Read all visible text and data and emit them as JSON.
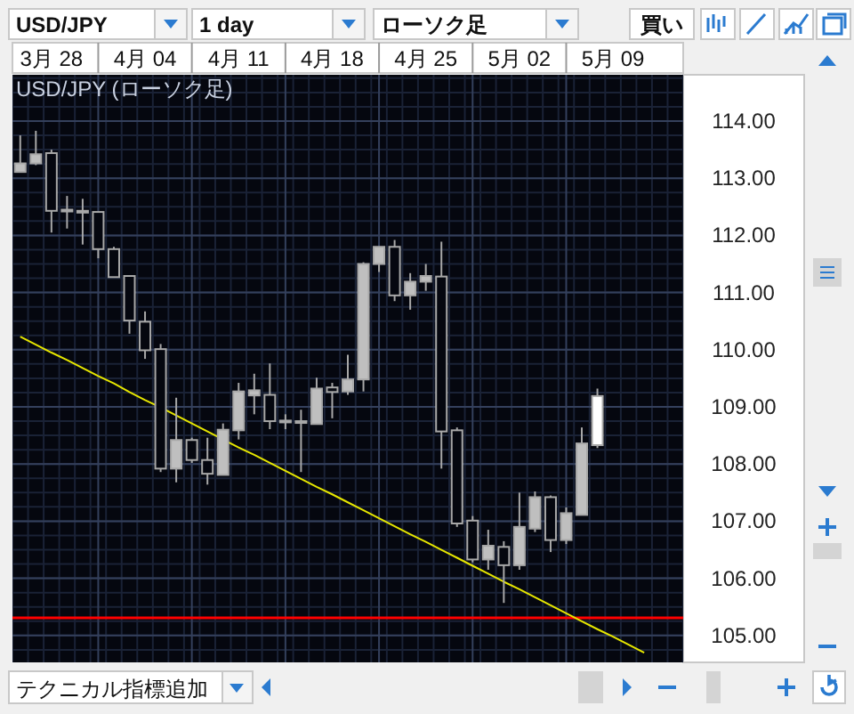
{
  "chart_data": {
    "type": "candlestick",
    "title": "USD/JPY (ローソク足)",
    "categories": [
      null,
      null,
      "3月 28",
      null,
      null,
      null,
      null,
      null,
      "4月 04",
      null,
      null,
      null,
      null,
      null,
      "4月 11",
      null,
      null,
      null,
      null,
      null,
      "4月 18",
      null,
      null,
      null,
      null,
      null,
      "4月 25",
      null,
      null,
      null,
      null,
      null,
      "5月 02",
      null,
      null,
      null,
      null,
      null,
      "5月 09",
      null,
      null,
      null,
      null
    ],
    "ohlc": [
      [
        113.11,
        113.75,
        113.11,
        113.26
      ],
      [
        113.26,
        113.83,
        113.23,
        113.42
      ],
      [
        113.44,
        113.5,
        112.05,
        112.43
      ],
      [
        112.43,
        112.69,
        112.12,
        112.45
      ],
      [
        112.43,
        112.64,
        111.84,
        112.41
      ],
      [
        112.41,
        112.41,
        111.6,
        111.76
      ],
      [
        111.76,
        111.8,
        111.27,
        111.27
      ],
      [
        111.29,
        111.29,
        110.28,
        110.51
      ],
      [
        110.49,
        110.67,
        109.84,
        109.99
      ],
      [
        110.01,
        110.1,
        107.86,
        107.92
      ],
      [
        107.92,
        109.16,
        107.68,
        108.42
      ],
      [
        108.42,
        108.46,
        108.02,
        108.07
      ],
      [
        108.07,
        108.46,
        107.64,
        107.83
      ],
      [
        107.81,
        108.71,
        107.81,
        108.6
      ],
      [
        108.59,
        109.42,
        108.43,
        109.27
      ],
      [
        109.2,
        109.58,
        108.87,
        109.29
      ],
      [
        109.21,
        109.76,
        108.61,
        108.75
      ],
      [
        108.75,
        108.87,
        108.61,
        108.76
      ],
      [
        108.75,
        108.95,
        107.86,
        108.74
      ],
      [
        108.7,
        109.51,
        108.7,
        109.32
      ],
      [
        109.34,
        109.42,
        108.8,
        109.26
      ],
      [
        109.27,
        109.91,
        109.21,
        109.48
      ],
      [
        109.48,
        111.53,
        109.27,
        111.5
      ],
      [
        111.5,
        111.8,
        111.36,
        111.8
      ],
      [
        111.8,
        111.92,
        110.85,
        110.95
      ],
      [
        110.95,
        111.34,
        110.7,
        111.19
      ],
      [
        111.19,
        111.5,
        111.03,
        111.29
      ],
      [
        111.28,
        111.89,
        107.92,
        108.57
      ],
      [
        108.59,
        108.64,
        106.9,
        106.96
      ],
      [
        107.01,
        107.09,
        106.28,
        106.33
      ],
      [
        106.33,
        106.85,
        106.15,
        106.57
      ],
      [
        106.55,
        106.65,
        105.57,
        106.23
      ],
      [
        106.23,
        107.5,
        106.15,
        106.9
      ],
      [
        106.87,
        107.52,
        106.81,
        107.42
      ],
      [
        107.42,
        107.45,
        106.46,
        106.67
      ],
      [
        106.67,
        107.24,
        106.6,
        107.14
      ],
      [
        107.11,
        108.64,
        107.11,
        108.36
      ],
      [
        108.33,
        109.32,
        108.28,
        109.19
      ],
      null,
      null,
      null,
      null,
      null
    ],
    "colors": [
      "#bfbfbf",
      "#bfbfbf",
      "#05070f",
      "#bfbfbf",
      "#05070f",
      "#05070f",
      "#05070f",
      "#05070f",
      "#05070f",
      "#05070f",
      "#bfbfbf",
      "#05070f",
      "#05070f",
      "#bfbfbf",
      "#bfbfbf",
      "#bfbfbf",
      "#05070f",
      "#bfbfbf",
      "#05070f",
      "#bfbfbf",
      "#05070f",
      "#bfbfbf",
      "#bfbfbf",
      "#bfbfbf",
      "#05070f",
      "#bfbfbf",
      "#bfbfbf",
      "#05070f",
      "#05070f",
      "#05070f",
      "#bfbfbf",
      "#05070f",
      "#bfbfbf",
      "#bfbfbf",
      "#05070f",
      "#bfbfbf",
      "#bfbfbf",
      "#ffffff",
      null,
      null,
      null,
      null,
      null
    ],
    "series": [
      {
        "type": "line",
        "color": "#e6e600",
        "values": [
          110.23,
          110.09,
          109.95,
          109.82,
          109.68,
          109.54,
          109.41,
          109.26,
          109.12,
          108.99,
          108.85,
          108.71,
          108.57,
          108.43,
          108.29,
          108.16,
          108.02,
          107.88,
          107.74,
          107.6,
          107.47,
          107.33,
          107.19,
          107.05,
          106.91,
          106.77,
          106.64,
          106.5,
          106.36,
          106.22,
          106.08,
          105.94,
          105.81,
          105.67,
          105.53,
          105.39,
          105.25,
          105.11,
          104.98,
          104.84,
          104.7,
          null,
          null
        ]
      }
    ],
    "ref_lines": [
      {
        "axis": "y",
        "value": 105.31,
        "color": "#ff0000"
      }
    ],
    "ylim": [
      104.53,
      114.81
    ],
    "yticks": [
      {
        "value": 105,
        "label": "105.00"
      },
      {
        "value": 106,
        "label": "106.00"
      },
      {
        "value": 107,
        "label": "107.00"
      },
      {
        "value": 108,
        "label": "108.00"
      },
      {
        "value": 109,
        "label": "109.00"
      },
      {
        "value": 110,
        "label": "110.00"
      },
      {
        "value": 111,
        "label": "111.00"
      },
      {
        "value": 112,
        "label": "112.00"
      },
      {
        "value": 113,
        "label": "113.00"
      },
      {
        "value": 114,
        "label": "114.00"
      }
    ],
    "grid": true,
    "annotations": [
      "USD/JPY",
      "1 day",
      "ローソク足",
      "買い",
      "テクニカル指標追加"
    ]
  }
}
